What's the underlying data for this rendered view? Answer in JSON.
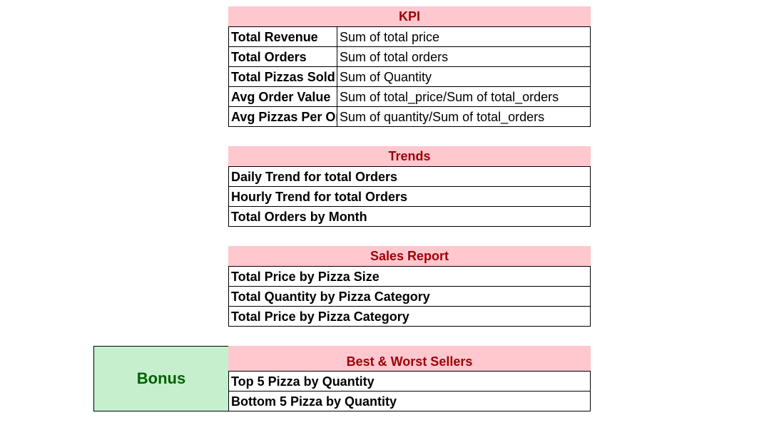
{
  "kpi": {
    "title": "KPI",
    "rows": [
      {
        "name": "Total Revenue",
        "definition": "Sum of total price"
      },
      {
        "name": "Total Orders",
        "definition": "Sum of total orders"
      },
      {
        "name": "Total Pizzas Sold",
        "definition": "Sum of Quantity"
      },
      {
        "name": "Avg Order Value",
        "definition": "Sum of total_price/Sum of total_orders"
      },
      {
        "name": "Avg Pizzas Per Or",
        "definition": "Sum of quantity/Sum of total_orders"
      }
    ]
  },
  "trends": {
    "title": "Trends",
    "rows": [
      "Daily Trend for total Orders",
      "Hourly Trend for total Orders",
      "Total Orders by Month"
    ]
  },
  "sales_report": {
    "title": "Sales Report",
    "rows": [
      "Total Price by Pizza Size",
      "Total Quantity by Pizza Category",
      "Total Price by Pizza Category"
    ]
  },
  "best_worst": {
    "title": "Best & Worst Sellers",
    "rows": [
      "Top 5 Pizza by Quantity",
      "Bottom 5 Pizza by Quantity"
    ]
  },
  "bonus": {
    "label": "Bonus"
  },
  "colors": {
    "header_fill": "#ffc7ce",
    "header_text": "#9c0006",
    "bonus_fill": "#c6efce",
    "bonus_text": "#006100"
  }
}
